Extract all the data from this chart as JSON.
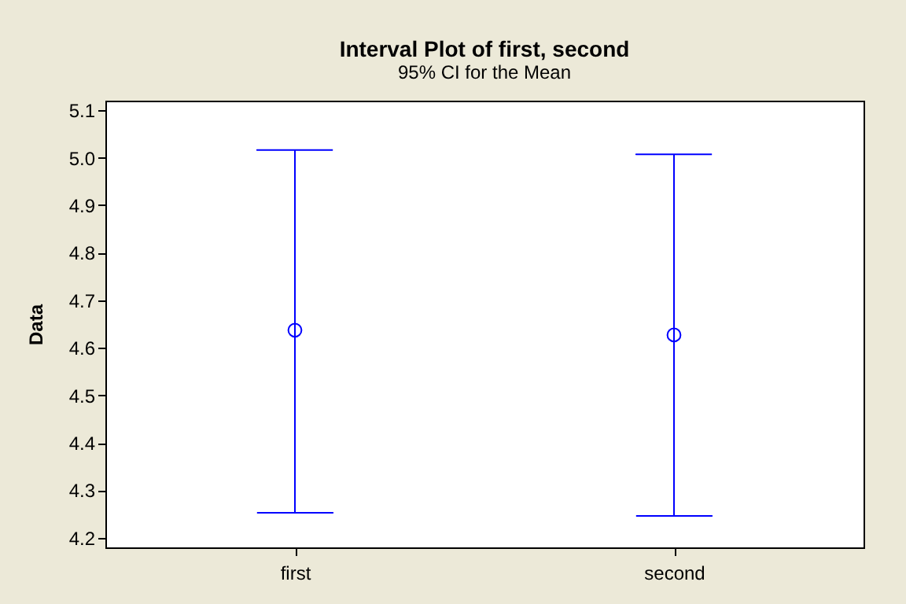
{
  "chart_data": {
    "type": "scatter",
    "title": "Interval Plot of first, second",
    "subtitle": "95% CI for the Mean",
    "ylabel": "Data",
    "categories": [
      "first",
      "second"
    ],
    "series": [
      {
        "color": "#0000ff",
        "values": [
          4.637,
          4.627
        ],
        "errors": [
          [
            4.253,
            5.016
          ],
          [
            4.246,
            5.007
          ]
        ]
      }
    ],
    "ylim": [
      4.18,
      5.12
    ],
    "yticks": [
      4.2,
      4.3,
      4.4,
      4.5,
      4.6,
      4.7,
      4.8,
      4.9,
      {
        "value": 5,
        "label": "5.0"
      },
      5.1
    ],
    "marker": "circle",
    "grid": false,
    "legend": false
  }
}
